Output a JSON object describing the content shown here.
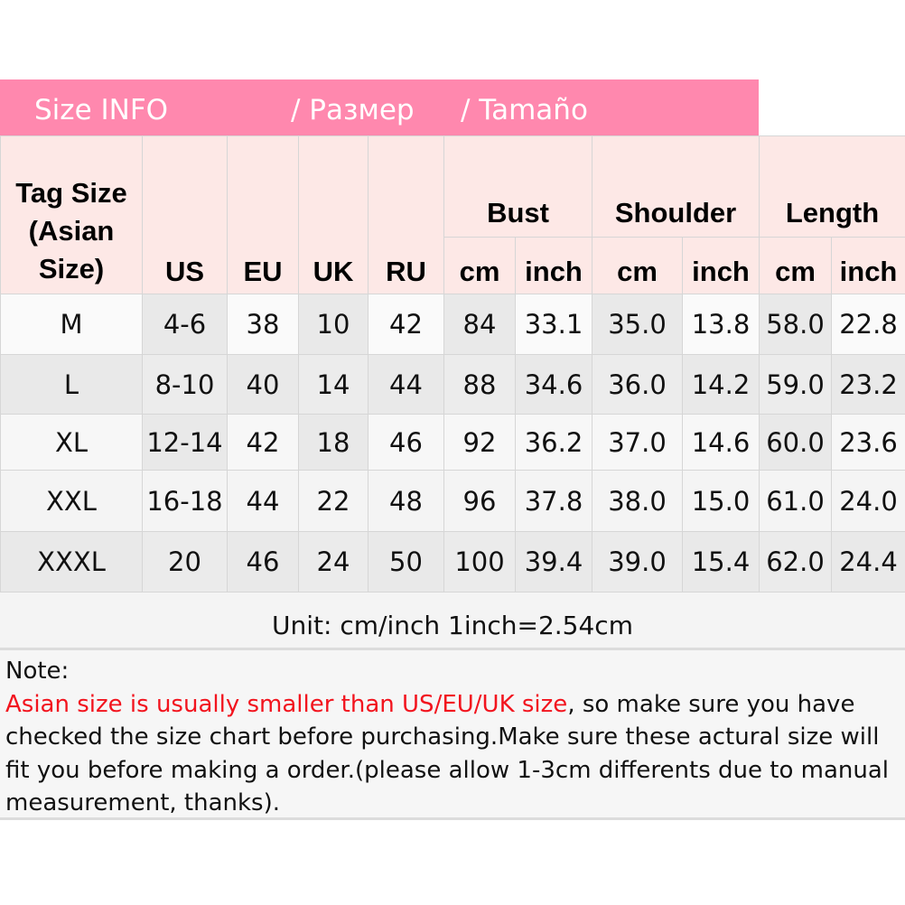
{
  "banner": {
    "title": "Size INFO",
    "ru": "/  Размер",
    "es": "/  Tamaño",
    "color": "#ff88ae"
  },
  "headers": {
    "tag_size": "Tag Size (Asian Size)",
    "us": "US",
    "eu": "EU",
    "uk": "UK",
    "ru": "RU",
    "bust": "Bust",
    "shoulder": "Shoulder",
    "length": "Length",
    "cm": "cm",
    "inch": "inch"
  },
  "rows": [
    [
      "M",
      "4-6",
      "38",
      "10",
      "42",
      "84",
      "33.1",
      "35.0",
      "13.8",
      "58.0",
      "22.8"
    ],
    [
      "L",
      "8-10",
      "40",
      "14",
      "44",
      "88",
      "34.6",
      "36.0",
      "14.2",
      "59.0",
      "23.2"
    ],
    [
      "XL",
      "12-14",
      "42",
      "18",
      "46",
      "92",
      "36.2",
      "37.0",
      "14.6",
      "60.0",
      "23.6"
    ],
    [
      "XXL",
      "16-18",
      "44",
      "22",
      "48",
      "96",
      "37.8",
      "38.0",
      "15.0",
      "61.0",
      "24.0"
    ],
    [
      "XXXL",
      "20",
      "46",
      "24",
      "50",
      "100",
      "39.4",
      "39.0",
      "15.4",
      "62.0",
      "24.4"
    ]
  ],
  "unit_line": "Unit: cm/inch   1inch=2.54cm",
  "note": {
    "label": "Note:",
    "warning": "Asian size is usually smaller than US/EU/UK size",
    "warning_color": "#f2141e",
    "text": ", so make sure you have checked the size chart before purchasing.Make sure these actural size will fit you before making a order.(please allow 1-3cm differents due to manual measurement, thanks)."
  }
}
